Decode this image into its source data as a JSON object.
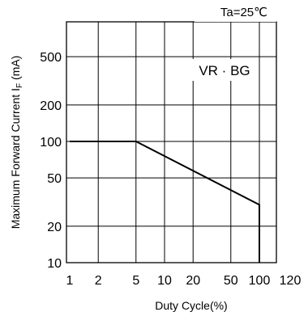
{
  "chart_data": {
    "type": "line",
    "title": "",
    "annotation": "Ta=25℃",
    "series_label": "VR · BG",
    "xlabel": "Duty Cycle(%)",
    "ylabel": "Maximum Forward Current  I",
    "ylabel_sub": "F",
    "ylabel_unit": " (mA)",
    "x_scale": "log",
    "y_scale": "log",
    "xlim": [
      1,
      120
    ],
    "ylim": [
      10,
      1000
    ],
    "grid": true,
    "x_ticks": [
      1,
      2,
      5,
      10,
      20,
      50,
      100,
      120
    ],
    "x_tick_labels": [
      "1",
      "2",
      "5",
      "10",
      "20",
      "50",
      "100",
      "120"
    ],
    "x_gridlines": [
      2,
      5,
      10,
      20,
      50,
      100
    ],
    "y_ticks": [
      10,
      20,
      50,
      100,
      200,
      500
    ],
    "y_tick_labels": [
      "10",
      "20",
      "50",
      "100",
      "200",
      "500"
    ],
    "y_gridlines": [
      20,
      50,
      100,
      200,
      500
    ],
    "series": [
      {
        "name": "VR · BG",
        "color": "#000000",
        "points": [
          {
            "x": 1,
            "y": 100
          },
          {
            "x": 5,
            "y": 100
          },
          {
            "x": 100,
            "y": 30
          },
          {
            "x": 100,
            "y": 10
          }
        ]
      }
    ]
  }
}
